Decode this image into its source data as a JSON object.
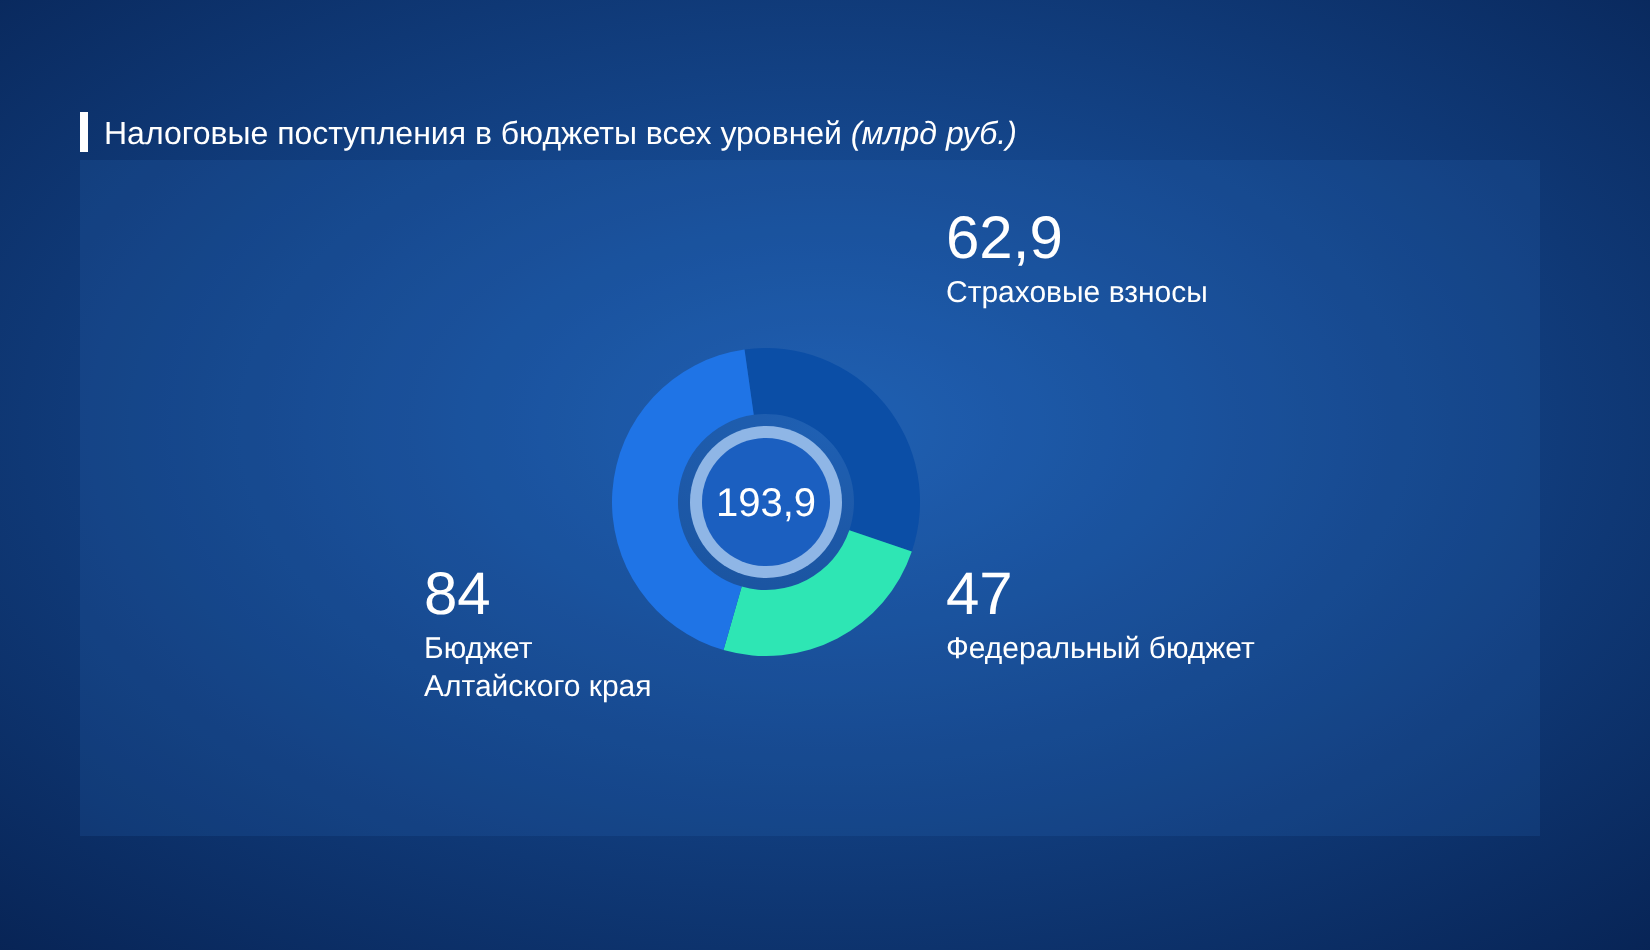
{
  "chart_data": {
    "type": "donut",
    "title": "Налоговые поступления в бюджеты всех уровней (млрд руб.)",
    "categories": [
      "Страховые взносы",
      "Федеральный бюджет",
      "Бюджет Алтайского края"
    ],
    "values": [
      62.9,
      47,
      84
    ],
    "value_labels": [
      "62,9",
      "47",
      "84"
    ],
    "colors": [
      "#0b4ea6",
      "#2ee6b4",
      "#1f74e6"
    ],
    "annotations": [
      "193,9"
    ]
  }
}
